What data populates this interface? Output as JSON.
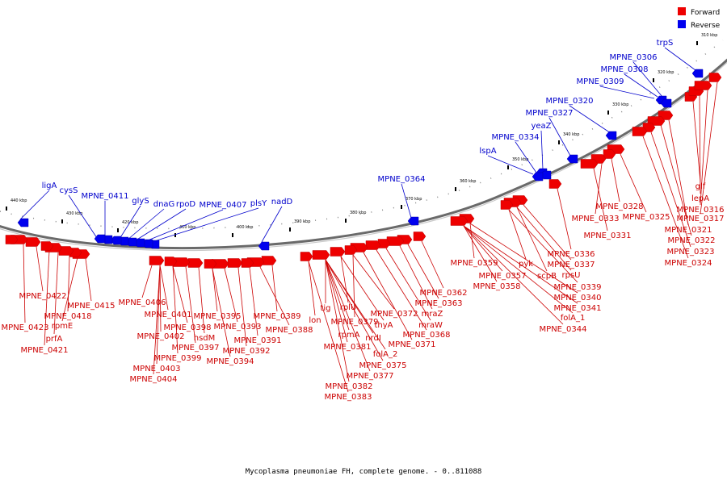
{
  "caption": "Mycoplasma pneumoniae FH, complete genome. - 0..811088",
  "colors": {
    "forward": "#ee0000",
    "reverse": "#0000ee",
    "forward_label": "#cc0000",
    "reverse_label": "#0000cc",
    "backbone": "#777777"
  },
  "legend": [
    {
      "label": "Forward",
      "color": "#ee0000"
    },
    {
      "label": "Reverse",
      "color": "#0000ee"
    }
  ],
  "ticks": [
    "310 kbp",
    "320 kbp",
    "330 kbp",
    "340 kbp",
    "350 kbp",
    "360 kbp",
    "370 kbp",
    "380 kbp",
    "390 kbp",
    "400 kbp",
    "410 kbp",
    "420 kbp",
    "430 kbp",
    "440 kbp"
  ],
  "reverse_labels": [
    "trpS",
    "MPNE_0306",
    "MPNE_0308",
    "MPNE_0309",
    "MPNE_0320",
    "MPNE_0327",
    "yeaZ",
    "MPNE_0334",
    "lspA",
    "MPNE_0364",
    "nadD",
    "plsY",
    "MPNE_0407",
    "rpoD",
    "dnaG",
    "glyS",
    "MPNE_0411",
    "cysS",
    "ligA"
  ],
  "forward_labels": [
    "glf",
    "lepA",
    "MPNE_0316",
    "MPNE_0317",
    "MPNE_0321",
    "MPNE_0322",
    "MPNE_0323",
    "MPNE_0324",
    "MPNE_0325",
    "MPNE_0328",
    "MPNE_0333",
    "MPNE_0331",
    "MPNE_0336",
    "MPNE_0337",
    "rpsU",
    "MPNE_0339",
    "MPNE_0340",
    "MPNE_0341",
    "folA_1",
    "MPNE_0344",
    "scpB",
    "pyk",
    "MPNE_0359",
    "MPNE_0357",
    "MPNE_0358",
    "MPNE_0362",
    "MPNE_0363",
    "mraZ",
    "mraW",
    "MPNE_0368",
    "MPNE_0371",
    "MPNE_0372",
    "thyA",
    "nrdI",
    "folA_2",
    "MPNE_0375",
    "MPNE_0377",
    "rplU",
    "MPNE_0379",
    "rpmA",
    "MPNE_0381",
    "MPNE_0382",
    "MPNE_0383",
    "tig",
    "lon",
    "MPNE_0389",
    "MPNE_0388",
    "MPNE_0391",
    "MPNE_0392",
    "MPNE_0393",
    "MPNE_0394",
    "MPNE_0395",
    "hsdM",
    "MPNE_0397",
    "MPNE_0398",
    "MPNE_0399",
    "MPNE_0401",
    "MPNE_0402",
    "MPNE_0403",
    "MPNE_0404",
    "MPNE_0406",
    "MPNE_0415",
    "rpmE",
    "MPNE_0418",
    "prfA",
    "MPNE_0421",
    "MPNE_0422",
    "MPNE_0423"
  ]
}
